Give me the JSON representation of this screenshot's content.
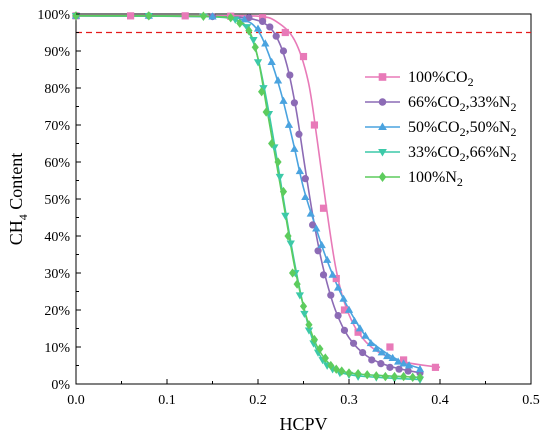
{
  "chart_data": {
    "type": "line",
    "xlabel": "HCPV",
    "ylabel": "CH4 Content",
    "ylabel_main": "CH",
    "ylabel_sub": "4",
    "ylabel_rest": " Content",
    "xlim": [
      0.0,
      0.5
    ],
    "ylim": [
      0,
      100
    ],
    "x_ticks": [
      0.0,
      0.1,
      0.2,
      0.3,
      0.4,
      0.5
    ],
    "x_tick_labels": [
      "0.0",
      "0.1",
      "0.2",
      "0.3",
      "0.4",
      "0.5"
    ],
    "y_ticks": [
      0,
      10,
      20,
      30,
      40,
      50,
      60,
      70,
      80,
      90,
      100
    ],
    "y_tick_labels": [
      "0%",
      "10%",
      "20%",
      "30%",
      "40%",
      "50%",
      "60%",
      "70%",
      "80%",
      "90%",
      "100%"
    ],
    "reference_line": {
      "y": 95,
      "color": "#e41a1c",
      "style": "dashed"
    },
    "grid": false,
    "legend_position": "right",
    "series": [
      {
        "name": "100%CO2",
        "label_parts": [
          [
            "100%CO",
            ""
          ],
          [
            "2",
            "sub"
          ]
        ],
        "color": "#e87ab8",
        "marker": "square",
        "points": [
          [
            0.0,
            99.5
          ],
          [
            0.06,
            99.5
          ],
          [
            0.12,
            99.5
          ],
          [
            0.17,
            99.4
          ],
          [
            0.205,
            99.0
          ],
          [
            0.23,
            95.0
          ],
          [
            0.25,
            88.5
          ],
          [
            0.262,
            70.0
          ],
          [
            0.272,
            47.5
          ],
          [
            0.286,
            28.5
          ],
          [
            0.295,
            20.0
          ],
          [
            0.31,
            14.0
          ],
          [
            0.345,
            10.0
          ],
          [
            0.36,
            6.5
          ],
          [
            0.395,
            4.5
          ]
        ],
        "curve": [
          [
            0.0,
            99.5
          ],
          [
            0.15,
            99.5
          ],
          [
            0.2,
            99.4
          ],
          [
            0.22,
            98.0
          ],
          [
            0.24,
            93.0
          ],
          [
            0.255,
            82.0
          ],
          [
            0.265,
            66.0
          ],
          [
            0.275,
            48.0
          ],
          [
            0.285,
            32.0
          ],
          [
            0.295,
            22.0
          ],
          [
            0.31,
            14.0
          ],
          [
            0.33,
            9.0
          ],
          [
            0.36,
            6.0
          ],
          [
            0.4,
            4.5
          ]
        ]
      },
      {
        "name": "66%CO2,33%N2",
        "label_parts": [
          [
            "66%CO",
            ""
          ],
          [
            "2",
            "sub"
          ],
          [
            ",33%N",
            ""
          ],
          [
            "2",
            "sub"
          ]
        ],
        "color": "#8c6bb5",
        "marker": "circle",
        "points": [
          [
            0.0,
            99.5
          ],
          [
            0.08,
            99.5
          ],
          [
            0.15,
            99.3
          ],
          [
            0.19,
            99.0
          ],
          [
            0.205,
            98.0
          ],
          [
            0.213,
            96.5
          ],
          [
            0.22,
            94.0
          ],
          [
            0.228,
            90.0
          ],
          [
            0.235,
            83.5
          ],
          [
            0.24,
            76.0
          ],
          [
            0.245,
            67.5
          ],
          [
            0.252,
            55.5
          ],
          [
            0.26,
            43.0
          ],
          [
            0.266,
            36.0
          ],
          [
            0.272,
            29.5
          ],
          [
            0.28,
            24.0
          ],
          [
            0.288,
            18.5
          ],
          [
            0.295,
            14.5
          ],
          [
            0.305,
            11.0
          ],
          [
            0.315,
            8.5
          ],
          [
            0.325,
            6.5
          ],
          [
            0.335,
            5.5
          ],
          [
            0.345,
            4.5
          ],
          [
            0.355,
            4.0
          ],
          [
            0.365,
            3.5
          ],
          [
            0.378,
            3.0
          ]
        ],
        "curve": [
          [
            0.0,
            99.5
          ],
          [
            0.15,
            99.3
          ],
          [
            0.19,
            98.8
          ],
          [
            0.21,
            97.0
          ],
          [
            0.222,
            93.0
          ],
          [
            0.232,
            86.0
          ],
          [
            0.242,
            74.0
          ],
          [
            0.252,
            58.0
          ],
          [
            0.262,
            43.0
          ],
          [
            0.272,
            31.0
          ],
          [
            0.285,
            20.0
          ],
          [
            0.3,
            12.5
          ],
          [
            0.32,
            7.5
          ],
          [
            0.345,
            4.8
          ],
          [
            0.378,
            3.0
          ]
        ]
      },
      {
        "name": "50%CO2,50%N2",
        "label_parts": [
          [
            "50%CO",
            ""
          ],
          [
            "2",
            "sub"
          ],
          [
            ",50%N",
            ""
          ],
          [
            "2",
            "sub"
          ]
        ],
        "color": "#4aa3df",
        "marker": "triangle-up",
        "points": [
          [
            0.0,
            99.5
          ],
          [
            0.08,
            99.5
          ],
          [
            0.15,
            99.3
          ],
          [
            0.185,
            98.5
          ],
          [
            0.2,
            96.0
          ],
          [
            0.208,
            92.0
          ],
          [
            0.215,
            87.0
          ],
          [
            0.222,
            82.0
          ],
          [
            0.228,
            76.5
          ],
          [
            0.234,
            70.0
          ],
          [
            0.24,
            63.5
          ],
          [
            0.246,
            57.5
          ],
          [
            0.252,
            50.5
          ],
          [
            0.258,
            46.0
          ],
          [
            0.264,
            42.0
          ],
          [
            0.27,
            37.5
          ],
          [
            0.276,
            33.5
          ],
          [
            0.282,
            29.5
          ],
          [
            0.288,
            26.0
          ],
          [
            0.294,
            23.0
          ],
          [
            0.3,
            20.0
          ],
          [
            0.306,
            17.0
          ],
          [
            0.312,
            15.0
          ],
          [
            0.318,
            13.0
          ],
          [
            0.324,
            11.0
          ],
          [
            0.33,
            9.5
          ],
          [
            0.336,
            8.5
          ],
          [
            0.342,
            7.5
          ],
          [
            0.348,
            7.0
          ],
          [
            0.354,
            6.0
          ],
          [
            0.36,
            5.5
          ],
          [
            0.366,
            5.0
          ],
          [
            0.378,
            4.0
          ]
        ],
        "curve": [
          [
            0.0,
            99.5
          ],
          [
            0.15,
            99.3
          ],
          [
            0.185,
            98.3
          ],
          [
            0.2,
            95.5
          ],
          [
            0.212,
            89.0
          ],
          [
            0.225,
            79.0
          ],
          [
            0.238,
            66.0
          ],
          [
            0.25,
            53.0
          ],
          [
            0.262,
            43.5
          ],
          [
            0.275,
            34.0
          ],
          [
            0.29,
            25.0
          ],
          [
            0.305,
            18.0
          ],
          [
            0.32,
            12.5
          ],
          [
            0.34,
            8.5
          ],
          [
            0.36,
            5.8
          ],
          [
            0.378,
            4.2
          ]
        ]
      },
      {
        "name": "33%CO2,66%N2",
        "label_parts": [
          [
            "33%CO",
            ""
          ],
          [
            "2",
            "sub"
          ],
          [
            ",66%N",
            ""
          ],
          [
            "2",
            "sub"
          ]
        ],
        "color": "#3cc9a8",
        "marker": "triangle-down",
        "points": [
          [
            0.0,
            99.5
          ],
          [
            0.08,
            99.5
          ],
          [
            0.14,
            99.3
          ],
          [
            0.175,
            98.5
          ],
          [
            0.188,
            96.5
          ],
          [
            0.195,
            93.0
          ],
          [
            0.2,
            87.0
          ],
          [
            0.206,
            80.0
          ],
          [
            0.212,
            73.0
          ],
          [
            0.218,
            64.0
          ],
          [
            0.224,
            56.0
          ],
          [
            0.23,
            45.5
          ],
          [
            0.236,
            38.0
          ],
          [
            0.241,
            30.0
          ],
          [
            0.246,
            24.0
          ],
          [
            0.251,
            19.0
          ],
          [
            0.256,
            14.5
          ],
          [
            0.261,
            11.0
          ],
          [
            0.266,
            8.5
          ],
          [
            0.271,
            6.5
          ],
          [
            0.276,
            5.0
          ],
          [
            0.282,
            4.0
          ],
          [
            0.29,
            3.0
          ],
          [
            0.3,
            2.5
          ],
          [
            0.31,
            2.0
          ],
          [
            0.33,
            1.8
          ],
          [
            0.35,
            1.5
          ],
          [
            0.378,
            1.2
          ]
        ],
        "curve": [
          [
            0.0,
            99.5
          ],
          [
            0.14,
            99.3
          ],
          [
            0.175,
            98.3
          ],
          [
            0.19,
            95.0
          ],
          [
            0.2,
            88.0
          ],
          [
            0.21,
            76.0
          ],
          [
            0.22,
            62.0
          ],
          [
            0.23,
            47.0
          ],
          [
            0.24,
            33.0
          ],
          [
            0.25,
            21.0
          ],
          [
            0.26,
            12.0
          ],
          [
            0.27,
            7.0
          ],
          [
            0.285,
            3.8
          ],
          [
            0.31,
            2.2
          ],
          [
            0.378,
            1.2
          ]
        ]
      },
      {
        "name": "100%N2",
        "label_parts": [
          [
            "100%N",
            ""
          ],
          [
            "2",
            "sub"
          ]
        ],
        "color": "#5dcc5d",
        "marker": "diamond",
        "points": [
          [
            0.0,
            99.5
          ],
          [
            0.08,
            99.5
          ],
          [
            0.14,
            99.4
          ],
          [
            0.17,
            99.0
          ],
          [
            0.18,
            97.5
          ],
          [
            0.19,
            95.5
          ],
          [
            0.197,
            91.0
          ],
          [
            0.204,
            79.0
          ],
          [
            0.209,
            73.5
          ],
          [
            0.215,
            65.0
          ],
          [
            0.222,
            60.0
          ],
          [
            0.228,
            52.0
          ],
          [
            0.233,
            40.0
          ],
          [
            0.238,
            30.0
          ],
          [
            0.243,
            27.0
          ],
          [
            0.25,
            21.0
          ],
          [
            0.256,
            16.0
          ],
          [
            0.262,
            12.0
          ],
          [
            0.268,
            9.5
          ],
          [
            0.274,
            7.0
          ],
          [
            0.28,
            5.0
          ],
          [
            0.286,
            4.0
          ],
          [
            0.292,
            3.5
          ],
          [
            0.3,
            3.0
          ],
          [
            0.31,
            2.8
          ],
          [
            0.32,
            2.5
          ],
          [
            0.33,
            2.2
          ],
          [
            0.34,
            2.0
          ],
          [
            0.35,
            2.0
          ],
          [
            0.36,
            2.0
          ],
          [
            0.37,
            1.8
          ],
          [
            0.378,
            1.8
          ]
        ],
        "curve": [
          [
            0.0,
            99.5
          ],
          [
            0.14,
            99.4
          ],
          [
            0.175,
            98.5
          ],
          [
            0.19,
            95.5
          ],
          [
            0.2,
            88.0
          ],
          [
            0.21,
            74.0
          ],
          [
            0.22,
            60.0
          ],
          [
            0.23,
            46.0
          ],
          [
            0.24,
            32.0
          ],
          [
            0.25,
            21.0
          ],
          [
            0.26,
            13.0
          ],
          [
            0.27,
            8.0
          ],
          [
            0.285,
            4.3
          ],
          [
            0.31,
            2.7
          ],
          [
            0.378,
            1.8
          ]
        ]
      }
    ]
  }
}
